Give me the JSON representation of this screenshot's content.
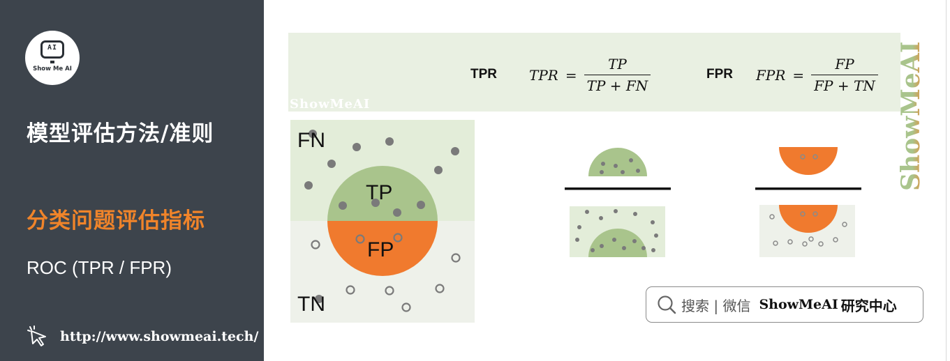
{
  "sidebar": {
    "logo_icon_text": "AI",
    "logo_text": "Show Me AI",
    "title": "模型评估方法/准则",
    "subtitle": "分类问题评估指标",
    "topic": "ROC (TPR / FPR)",
    "link": "http://www.showmeai.tech/"
  },
  "formulas": {
    "tpr_label": "TPR",
    "tpr_lhs": "TPR",
    "tpr_eq": "=",
    "tpr_num": "TP",
    "tpr_den_a": "TP",
    "tpr_den_op": "+",
    "tpr_den_b": "FN",
    "fpr_label": "FPR",
    "fpr_lhs": "FPR",
    "fpr_eq": "=",
    "fpr_num": "FP",
    "fpr_den_a": "FP",
    "fpr_den_op": "+",
    "fpr_den_b": "TN",
    "watermark": "ShowMeAI"
  },
  "diagram": {
    "fn_label": "FN",
    "tp_label": "TP",
    "fp_label": "FP",
    "tn_label": "TN"
  },
  "brand": {
    "vertical_text": "ShowMeAI",
    "search_text": "搜索 | 微信",
    "search_brand": "ShowMeAI",
    "search_suffix": "研究中心"
  },
  "colors": {
    "sidebar_bg": "#3d444c",
    "accent_orange": "#f0842a",
    "tp_green": "#a9c48c",
    "fn_bg": "#e3edd9",
    "tn_bg": "#eef1ea",
    "banner_bg": "#e9f0e2",
    "dot_gray": "#7a7a7a"
  }
}
